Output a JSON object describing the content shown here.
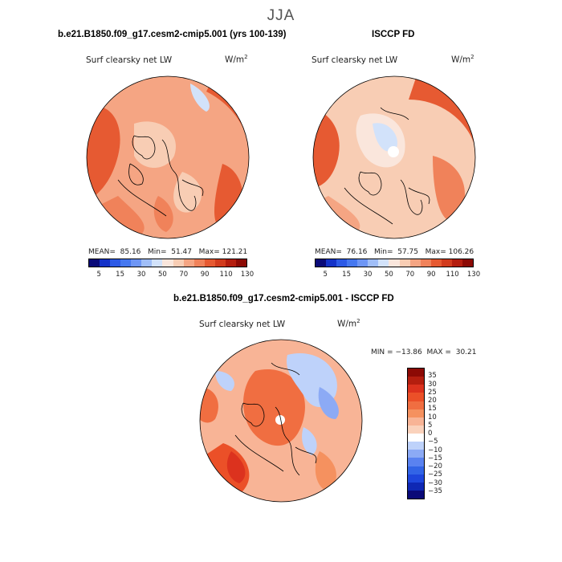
{
  "page": {
    "season": "JJA"
  },
  "panels": {
    "model": {
      "title": "b.e21.B1850.f09_g17.cesm2-cmip5.001 (yrs 100-139)",
      "variable": "Surf clearsky net LW",
      "units_base": "W/m",
      "units_exp": "2",
      "mean_label": "MEAN=",
      "mean_value": "85.16",
      "min_label": "Min=",
      "min_value": "51.47",
      "max_label": "Max=",
      "max_value": "121.21"
    },
    "obs": {
      "title": "ISCCP FD",
      "variable": "Surf clearsky net LW",
      "units_base": "W/m",
      "units_exp": "2",
      "mean_label": "MEAN=",
      "mean_value": "76.16",
      "min_label": "Min=",
      "min_value": "57.75",
      "max_label": "Max=",
      "max_value": "106.26"
    },
    "diff": {
      "title": "b.e21.B1850.f09_g17.cesm2-cmip5.001 - ISCCP FD",
      "variable": "Surf clearsky net LW",
      "units_base": "W/m",
      "units_exp": "2",
      "min_label": "MIN =",
      "min_value": "−13.86",
      "max_label": "MAX =",
      "max_value": "30.21"
    }
  },
  "colorbars": {
    "abs_colors": [
      "#0a0a78",
      "#1432c8",
      "#2d5ae6",
      "#4678f0",
      "#6e96f5",
      "#a0bef8",
      "#d2e2fa",
      "#fae6dc",
      "#f8cdb4",
      "#f5a583",
      "#f0825a",
      "#e65a32",
      "#d23c1e",
      "#b41e0f",
      "#8c0a05"
    ],
    "abs_ticks": [
      "5",
      "15",
      "30",
      "50",
      "70",
      "90",
      "110",
      "130"
    ],
    "diff_colors": [
      "#0a0a78",
      "#0f28b4",
      "#1e46dc",
      "#3264e6",
      "#5a82f0",
      "#8caaf5",
      "#bed2fa",
      "#ffffff",
      "#fad2bc",
      "#f8b496",
      "#f5915f",
      "#f06e41",
      "#eb5028",
      "#dc321e",
      "#b41e0f",
      "#8c0a05"
    ],
    "diff_ticks": [
      "35",
      "30",
      "25",
      "20",
      "15",
      "10",
      "5",
      "0",
      "−5",
      "−10",
      "−15",
      "−20",
      "−25",
      "−30",
      "−35"
    ]
  }
}
